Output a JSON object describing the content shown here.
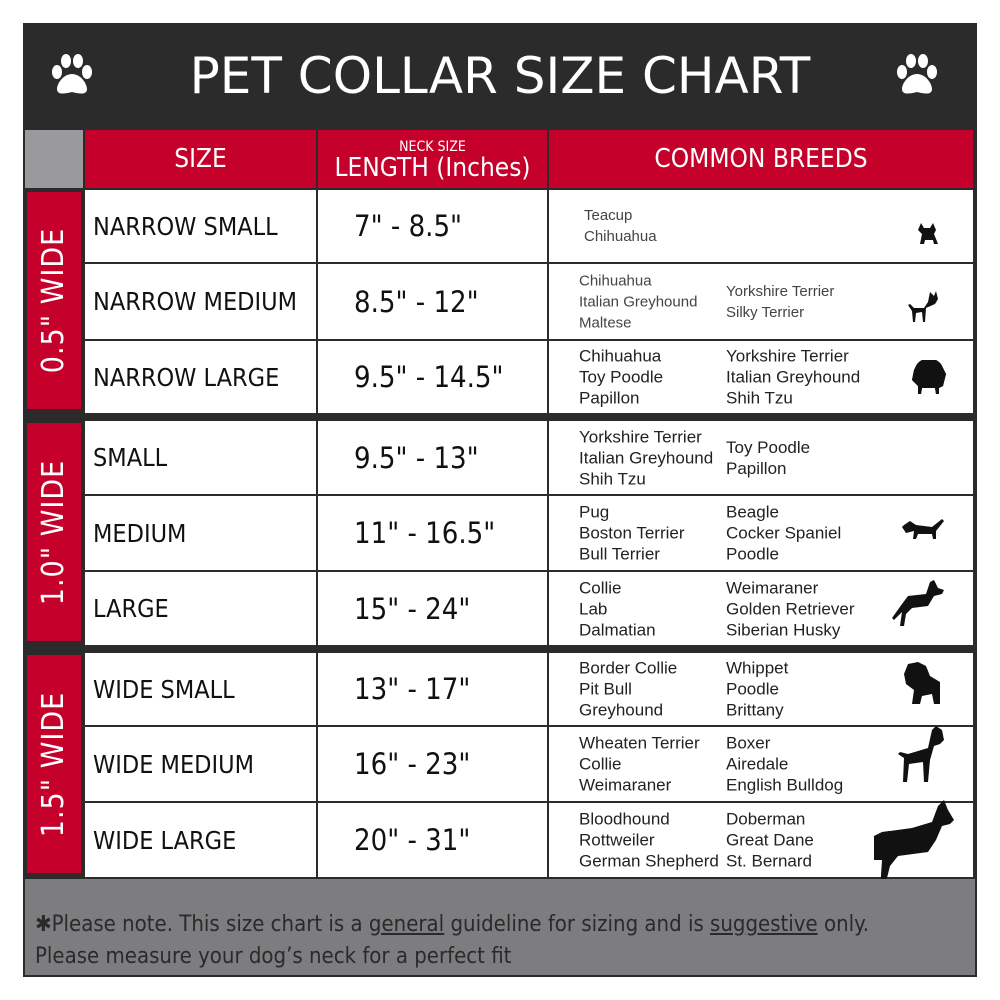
{
  "title": "PET COLLAR SIZE CHART",
  "colors": {
    "title_bg": "#2b2b2b",
    "accent_red": "#c4002b",
    "footer_bg": "#7d7d80"
  },
  "headers": {
    "size": "SIZE",
    "neck_size": "NECK SIZE",
    "length": "LENGTH (Inches)",
    "breeds": "COMMON BREEDS"
  },
  "groups": [
    {
      "label": "0.5\" WIDE",
      "rows": [
        {
          "size": "NARROW SMALL",
          "length": "7\" - 8.5\"",
          "breeds_a": [
            "Teacup",
            "Chihuahua"
          ],
          "breeds_b": [],
          "icon": "yorkie-silhouette-icon"
        },
        {
          "size": "NARROW MEDIUM",
          "length": "8.5\" - 12\"",
          "breeds_a": [
            "Chihuahua",
            "Italian Greyhound",
            "Maltese"
          ],
          "breeds_b": [
            "Yorkshire Terrier",
            "Silky Terrier"
          ],
          "icon": "chihuahua-silhouette-icon"
        },
        {
          "size": "NARROW LARGE",
          "length": "9.5\" - 14.5\"",
          "breeds_a": [
            "Chihuahua",
            "Toy Poodle",
            "Papillon"
          ],
          "breeds_b": [
            "Yorkshire Terrier",
            "Italian Greyhound",
            "Shih Tzu"
          ],
          "icon": "pomeranian-silhouette-icon"
        }
      ]
    },
    {
      "label": "1.0\" WIDE",
      "rows": [
        {
          "size": "SMALL",
          "length": "9.5\" - 13\"",
          "breeds_a": [
            "Yorkshire Terrier",
            "Italian Greyhound",
            "Shih Tzu"
          ],
          "breeds_b": [
            "Toy Poodle",
            "Papillon"
          ],
          "icon": "pomeranian-silhouette-icon"
        },
        {
          "size": "MEDIUM",
          "length": "11\" - 16.5\"",
          "breeds_a": [
            "Pug",
            "Boston Terrier",
            "Bull Terrier"
          ],
          "breeds_b": [
            "Beagle",
            "Cocker Spaniel",
            "Poodle"
          ],
          "icon": "dachshund-silhouette-icon"
        },
        {
          "size": "LARGE",
          "length": "15\" - 24\"",
          "breeds_a": [
            "Collie",
            "Lab",
            "Dalmatian"
          ],
          "breeds_b": [
            "Weimaraner",
            "Golden Retriever",
            "Siberian Husky"
          ],
          "icon": "shepherd-silhouette-icon"
        }
      ]
    },
    {
      "label": "1.5\" WIDE",
      "rows": [
        {
          "size": "WIDE SMALL",
          "length": "13\" - 17\"",
          "breeds_a": [
            "Border Collie",
            "Pit Bull",
            "Greyhound"
          ],
          "breeds_b": [
            "Whippet",
            "Poodle",
            "Brittany"
          ],
          "icon": "bulldog-silhouette-icon"
        },
        {
          "size": "WIDE MEDIUM",
          "length": "16\" - 23\"",
          "breeds_a": [
            "Wheaten Terrier",
            "Collie",
            "Weimaraner"
          ],
          "breeds_b": [
            "Boxer",
            "Airedale",
            "English Bulldog"
          ],
          "icon": "pitbull-silhouette-icon"
        },
        {
          "size": "WIDE LARGE",
          "length": "20\" - 31\"",
          "breeds_a": [
            "Bloodhound",
            "Rottweiler",
            "German Shepherd"
          ],
          "breeds_b": [
            "Doberman",
            "Great Dane",
            "St. Bernard"
          ],
          "icon": "doberman-silhouette-icon"
        }
      ]
    }
  ],
  "footer": {
    "star": "✱",
    "p1": "Please note. This size chart is a ",
    "u1": "general",
    "p2": " guideline for sizing and is ",
    "u2": "suggestive",
    "p3": " only.",
    "line2": "Please measure your dog’s neck for a perfect fit"
  }
}
